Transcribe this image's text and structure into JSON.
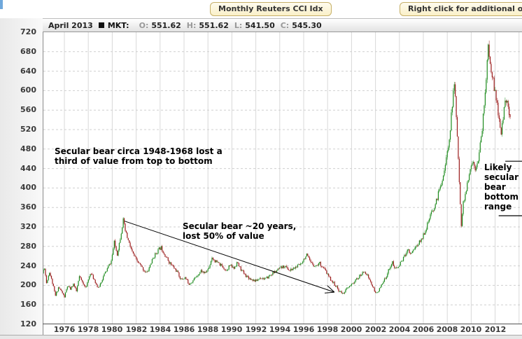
{
  "toolbar": {
    "title_button": "Monthly Reuters CCI Idx",
    "options_button": "Right click for additional options"
  },
  "quote_bar": {
    "date": "April 2013",
    "mkt_label": "MKT:",
    "fields": [
      {
        "label": "O:",
        "value": "551.62"
      },
      {
        "label": "H:",
        "value": "551.62"
      },
      {
        "label": "L:",
        "value": "541.50"
      },
      {
        "label": "C:",
        "value": "545.30"
      }
    ]
  },
  "chart_data": {
    "type": "candlestick",
    "title": "Monthly Reuters CCI Idx",
    "interval": "monthly",
    "xlabel": "",
    "ylabel": "",
    "x_axis": {
      "ticks": [
        1976,
        1978,
        1980,
        1982,
        1984,
        1986,
        1988,
        1990,
        1992,
        1994,
        1996,
        1998,
        2000,
        2002,
        2004,
        2006,
        2008,
        2010,
        2012
      ],
      "grid_years": [
        1976,
        1978,
        1980,
        1982,
        1984,
        1986,
        1988,
        1990,
        1992,
        1994,
        1996,
        1998,
        2000,
        2002,
        2004,
        2006,
        2008,
        2010,
        2012,
        2014
      ],
      "range": [
        1974.0,
        2014.4
      ]
    },
    "y_axis": {
      "ticks": [
        720,
        680,
        640,
        600,
        560,
        520,
        480,
        440,
        400,
        360,
        320,
        280,
        240,
        200,
        160,
        120
      ],
      "range": [
        120,
        720
      ],
      "gridlines": "dashed"
    },
    "colors": {
      "up": "#1c8a1c",
      "down": "#9b1b1b",
      "grid_h": "#cfcfcf",
      "grid_v": "#d8d8d8",
      "axis": "#555555"
    },
    "start_year": 1974.17,
    "end_year": 2013.29,
    "last_candle": {
      "date": "April 2013",
      "open": 551.62,
      "high": 551.62,
      "low": 541.5,
      "close": 545.3
    },
    "anchors": [
      [
        1974.08,
        215
      ],
      [
        1974.17,
        225
      ],
      [
        1974.33,
        238
      ],
      [
        1974.5,
        205
      ],
      [
        1974.75,
        228
      ],
      [
        1975.0,
        205
      ],
      [
        1975.25,
        178
      ],
      [
        1975.5,
        196
      ],
      [
        1975.75,
        188
      ],
      [
        1976.0,
        176
      ],
      [
        1976.25,
        198
      ],
      [
        1976.5,
        192
      ],
      [
        1976.75,
        203
      ],
      [
        1977.0,
        187
      ],
      [
        1977.25,
        218
      ],
      [
        1977.5,
        206
      ],
      [
        1977.83,
        196
      ],
      [
        1978.17,
        226
      ],
      [
        1978.5,
        212
      ],
      [
        1978.83,
        193
      ],
      [
        1979.08,
        208
      ],
      [
        1979.33,
        222
      ],
      [
        1979.67,
        238
      ],
      [
        1979.92,
        250
      ],
      [
        1980.17,
        288
      ],
      [
        1980.42,
        264
      ],
      [
        1980.67,
        298
      ],
      [
        1980.92,
        334
      ],
      [
        1981.08,
        312
      ],
      [
        1981.33,
        292
      ],
      [
        1981.67,
        268
      ],
      [
        1982.0,
        252
      ],
      [
        1982.33,
        242
      ],
      [
        1982.67,
        230
      ],
      [
        1982.92,
        226
      ],
      [
        1983.17,
        242
      ],
      [
        1983.5,
        260
      ],
      [
        1983.83,
        272
      ],
      [
        1984.08,
        278
      ],
      [
        1984.42,
        262
      ],
      [
        1984.75,
        248
      ],
      [
        1985.08,
        238
      ],
      [
        1985.42,
        228
      ],
      [
        1985.75,
        212
      ],
      [
        1986.08,
        216
      ],
      [
        1986.42,
        203
      ],
      [
        1986.75,
        210
      ],
      [
        1987.08,
        220
      ],
      [
        1987.42,
        230
      ],
      [
        1987.75,
        225
      ],
      [
        1988.08,
        236
      ],
      [
        1988.33,
        258
      ],
      [
        1988.58,
        250
      ],
      [
        1988.92,
        244
      ],
      [
        1989.25,
        238
      ],
      [
        1989.5,
        231
      ],
      [
        1989.83,
        241
      ],
      [
        1990.17,
        235
      ],
      [
        1990.42,
        247
      ],
      [
        1990.75,
        233
      ],
      [
        1991.08,
        222
      ],
      [
        1991.5,
        214
      ],
      [
        1992.0,
        209
      ],
      [
        1992.42,
        216
      ],
      [
        1992.83,
        213
      ],
      [
        1993.25,
        222
      ],
      [
        1993.67,
        229
      ],
      [
        1994.0,
        234
      ],
      [
        1994.42,
        240
      ],
      [
        1994.83,
        230
      ],
      [
        1995.25,
        236
      ],
      [
        1995.67,
        242
      ],
      [
        1996.0,
        254
      ],
      [
        1996.25,
        262
      ],
      [
        1996.58,
        246
      ],
      [
        1997.0,
        240
      ],
      [
        1997.33,
        246
      ],
      [
        1997.75,
        232
      ],
      [
        1998.17,
        215
      ],
      [
        1998.58,
        202
      ],
      [
        1998.92,
        190
      ],
      [
        1999.25,
        183
      ],
      [
        1999.58,
        192
      ],
      [
        1999.92,
        199
      ],
      [
        2000.25,
        208
      ],
      [
        2000.58,
        216
      ],
      [
        2000.92,
        225
      ],
      [
        2001.08,
        230
      ],
      [
        2001.42,
        216
      ],
      [
        2001.75,
        198
      ],
      [
        2002.0,
        183
      ],
      [
        2002.33,
        192
      ],
      [
        2002.67,
        207
      ],
      [
        2002.92,
        220
      ],
      [
        2003.17,
        236
      ],
      [
        2003.42,
        248
      ],
      [
        2003.58,
        234
      ],
      [
        2003.92,
        238
      ],
      [
        2004.17,
        250
      ],
      [
        2004.5,
        263
      ],
      [
        2004.67,
        276
      ],
      [
        2004.92,
        265
      ],
      [
        2005.17,
        274
      ],
      [
        2005.5,
        283
      ],
      [
        2005.83,
        294
      ],
      [
        2006.08,
        308
      ],
      [
        2006.33,
        324
      ],
      [
        2006.58,
        342
      ],
      [
        2006.83,
        356
      ],
      [
        2007.08,
        372
      ],
      [
        2007.33,
        396
      ],
      [
        2007.58,
        418
      ],
      [
        2007.83,
        446
      ],
      [
        2008.08,
        484
      ],
      [
        2008.25,
        524
      ],
      [
        2008.42,
        572
      ],
      [
        2008.58,
        614
      ],
      [
        2008.75,
        555
      ],
      [
        2008.92,
        455
      ],
      [
        2009.08,
        375
      ],
      [
        2009.17,
        325
      ],
      [
        2009.33,
        368
      ],
      [
        2009.58,
        395
      ],
      [
        2009.83,
        425
      ],
      [
        2010.08,
        455
      ],
      [
        2010.33,
        442
      ],
      [
        2010.58,
        460
      ],
      [
        2010.83,
        500
      ],
      [
        2011.0,
        545
      ],
      [
        2011.17,
        600
      ],
      [
        2011.33,
        655
      ],
      [
        2011.42,
        688
      ],
      [
        2011.58,
        652
      ],
      [
        2011.75,
        636
      ],
      [
        2011.92,
        605
      ],
      [
        2012.08,
        582
      ],
      [
        2012.25,
        556
      ],
      [
        2012.5,
        508
      ],
      [
        2012.67,
        545
      ],
      [
        2012.83,
        588
      ],
      [
        2013.0,
        572
      ],
      [
        2013.17,
        556
      ],
      [
        2013.29,
        545.3
      ]
    ],
    "annotations": [
      {
        "id": "bear-1948-1968",
        "lines": [
          "Secular bear circa 1948-1968 lost a",
          "third of value from top to bottom"
        ],
        "year": 1975.18,
        "value": 485
      },
      {
        "id": "bear-20-years",
        "lines": [
          "Secular bear ~20 years,",
          "lost 50% of value"
        ],
        "year": 1985.88,
        "value": 331
      },
      {
        "id": "likely-bottom",
        "lines": [
          "Likely",
          "secular",
          "bear",
          "bottom",
          "range"
        ],
        "year": 2011.09,
        "value": 452
      }
    ],
    "arrow": {
      "from_year": 1981.03,
      "from_value": 332,
      "to_year": 1998.57,
      "to_value": 186
    },
    "range_lines": [
      {
        "value": 455,
        "from_year": 2012.85,
        "to_year": 2014.4
      },
      {
        "value": 343,
        "from_year": 2012.3,
        "to_year": 2014.4
      }
    ]
  }
}
